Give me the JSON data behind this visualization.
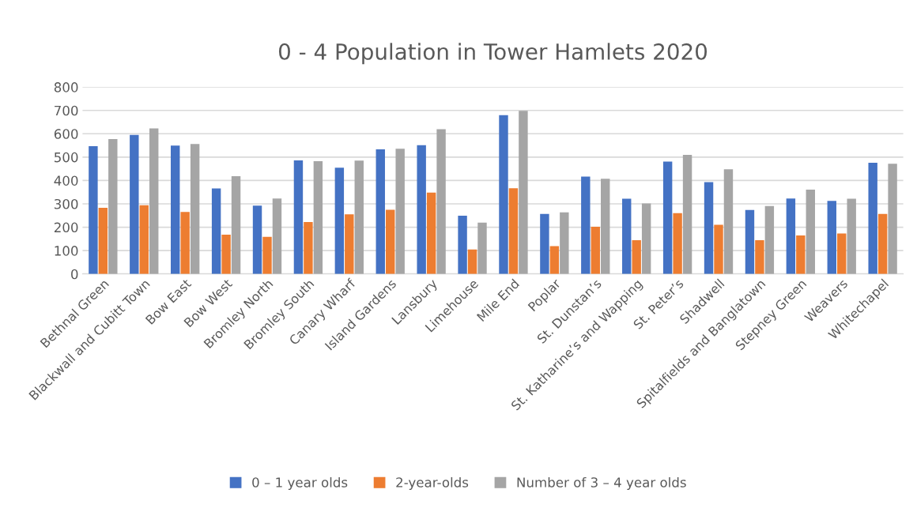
{
  "chart_data": {
    "type": "bar",
    "title": "0 - 4 Population in Tower Hamlets 2020",
    "categories": [
      "Bethnal Green",
      "Blackwall and Cubitt Town",
      "Bow East",
      "Bow West",
      "Bromley North",
      "Bromley South",
      "Canary Wharf",
      "Island Gardens",
      "Lansbury",
      "Limehouse",
      "Mile End",
      "Poplar",
      "St. Dunstan’s",
      "St. Katharine’s and Wapping",
      "St. Peter’s",
      "Shadwell",
      "Spitalfields and Banglatown",
      "Stepney Green",
      "Weavers",
      "Whitechapel"
    ],
    "series": [
      {
        "name": "0 – 1 year olds",
        "color": "#4472c4",
        "values": [
          547,
          595,
          549,
          366,
          292,
          486,
          455,
          533,
          551,
          249,
          680,
          257,
          417,
          322,
          481,
          393,
          274,
          323,
          313,
          476
        ]
      },
      {
        "name": "2-year-olds",
        "color": "#ed7d31",
        "values": [
          283,
          294,
          265,
          168,
          159,
          222,
          255,
          275,
          348,
          105,
          367,
          119,
          202,
          144,
          260,
          210,
          144,
          165,
          173,
          257
        ]
      },
      {
        "name": "Number of 3 – 4 year olds",
        "color": "#a5a5a5",
        "values": [
          577,
          623,
          556,
          418,
          323,
          483,
          485,
          536,
          620,
          220,
          698,
          264,
          407,
          302,
          510,
          448,
          291,
          361,
          322,
          472
        ]
      }
    ],
    "ylim": [
      0,
      800
    ],
    "yticks": [
      0,
      100,
      200,
      300,
      400,
      500,
      600,
      700,
      800
    ],
    "grid": "y",
    "legend": "bottom"
  }
}
